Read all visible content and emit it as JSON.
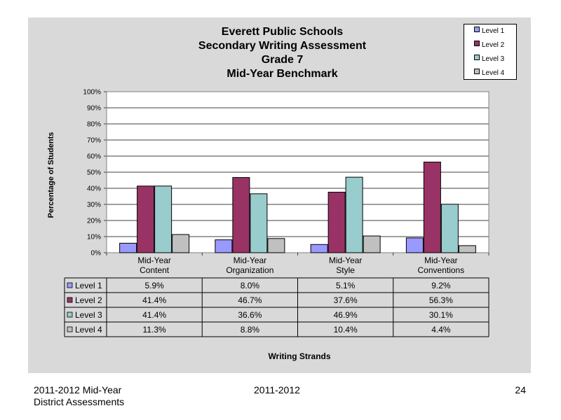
{
  "chart_data": {
    "type": "bar",
    "title_lines": [
      "Everett Public Schools",
      "Secondary Writing Assessment",
      "Grade 7",
      "Mid-Year Benchmark"
    ],
    "ylabel": "Percentage of Students",
    "xlabel": "Writing Strands",
    "ylim": [
      0,
      100
    ],
    "y_ticks": [
      "0%",
      "10%",
      "20%",
      "30%",
      "40%",
      "50%",
      "60%",
      "70%",
      "80%",
      "90%",
      "100%"
    ],
    "categories": [
      [
        "Mid-Year",
        "Content"
      ],
      [
        "Mid-Year",
        "Organization"
      ],
      [
        "Mid-Year",
        "Style"
      ],
      [
        "Mid-Year",
        "Conventions"
      ]
    ],
    "series": [
      {
        "name": "Level 1",
        "color": "#9999ff",
        "values": [
          5.9,
          8.0,
          5.1,
          9.2
        ],
        "labels": [
          "5.9%",
          "8.0%",
          "5.1%",
          "9.2%"
        ]
      },
      {
        "name": "Level 2",
        "color": "#993366",
        "values": [
          41.4,
          46.7,
          37.6,
          56.3
        ],
        "labels": [
          "41.4%",
          "46.7%",
          "37.6%",
          "56.3%"
        ]
      },
      {
        "name": "Level 3",
        "color": "#99cccc",
        "values": [
          41.4,
          36.6,
          46.9,
          30.1
        ],
        "labels": [
          "41.4%",
          "36.6%",
          "46.9%",
          "30.1%"
        ]
      },
      {
        "name": "Level 4",
        "color": "#c0c0c0",
        "values": [
          11.3,
          8.8,
          10.4,
          4.4
        ],
        "labels": [
          "11.3%",
          "8.8%",
          "10.4%",
          "4.4%"
        ]
      }
    ],
    "legend_position": "top-right",
    "grid": true,
    "plot_background": "#ffffff"
  },
  "footer": {
    "left_line1": "2011-2012  Mid-Year",
    "left_line2": "District Assessments",
    "center": "2011-2012",
    "page_number": "24"
  }
}
